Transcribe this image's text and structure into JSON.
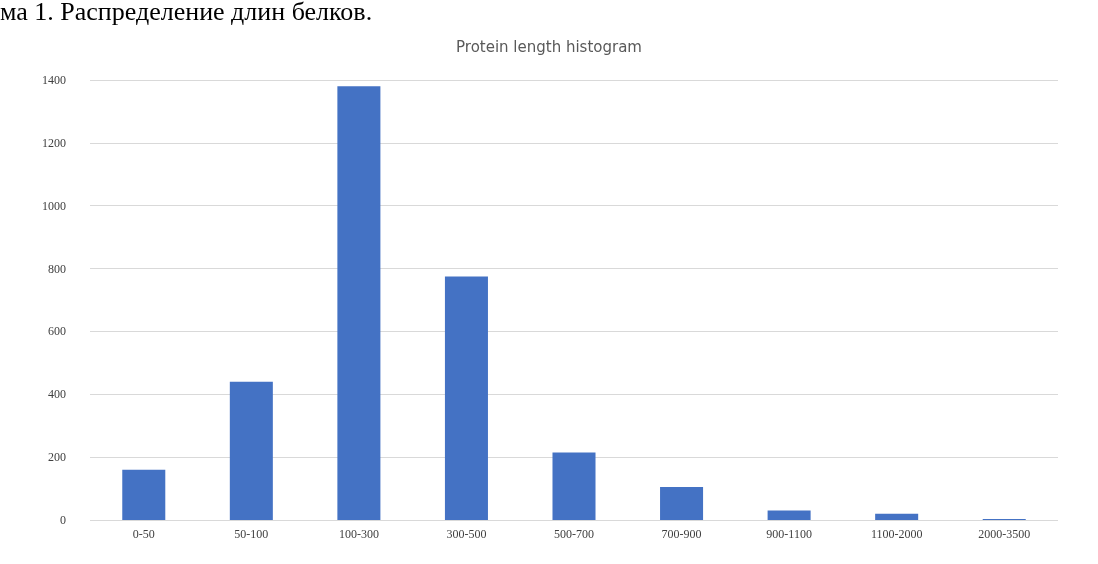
{
  "chart_data": {
    "type": "bar",
    "title": "Protein length histogram",
    "annotations": [
      "ма 1. Распределение длин белков."
    ],
    "categories": [
      "0-50",
      "50-100",
      "100-300",
      "300-500",
      "500-700",
      "700-900",
      "900-1100",
      "1100-2000",
      "2000-3500"
    ],
    "values": [
      160,
      440,
      1380,
      775,
      215,
      105,
      30,
      20,
      3
    ],
    "color": "#4472c4",
    "ylim": [
      0,
      1400
    ],
    "yticks": [
      0,
      200,
      400,
      600,
      800,
      1000,
      1200,
      1400
    ],
    "grid": "y"
  }
}
